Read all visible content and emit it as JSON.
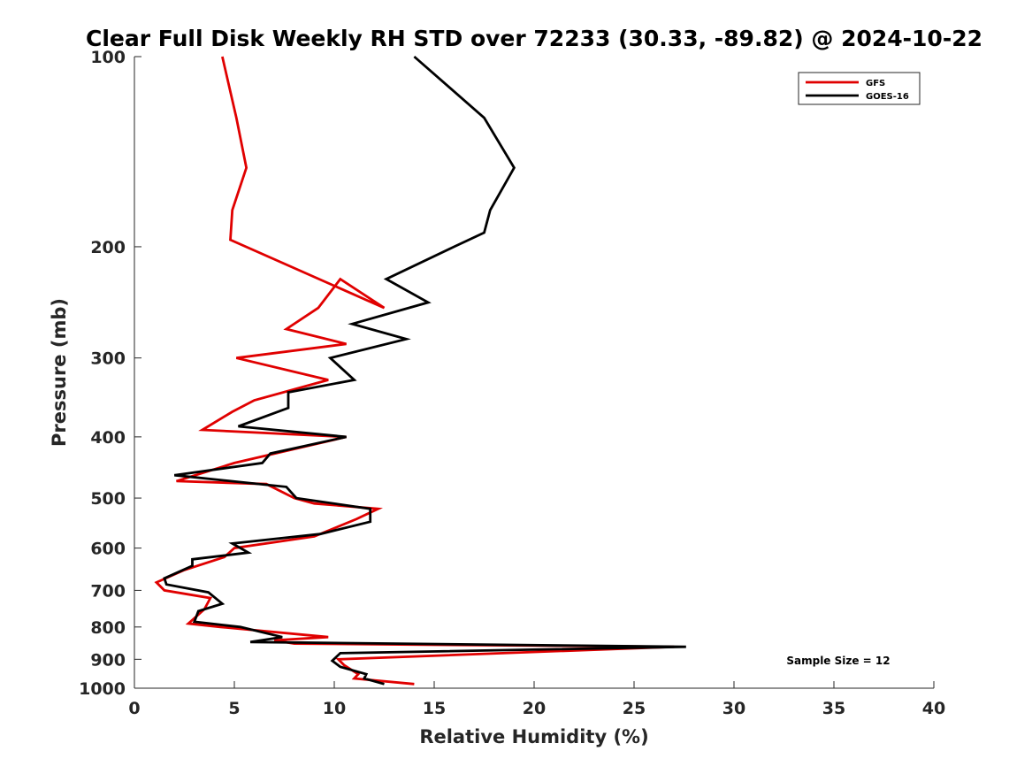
{
  "chart_data": {
    "type": "line",
    "title": "Clear Full Disk Weekly RH STD over 72233 (30.33, -89.82) @ 2024-10-22",
    "xlabel": "Relative Humidity (%)",
    "ylabel": "Pressure (mb)",
    "xlim": [
      0,
      40
    ],
    "ylim": [
      100,
      1000
    ],
    "yscale": "log",
    "y_reversed": true,
    "xticks": [
      0,
      5,
      10,
      15,
      20,
      25,
      30,
      35,
      40
    ],
    "yticks": [
      100,
      200,
      300,
      400,
      500,
      600,
      700,
      800,
      900,
      1000
    ],
    "legend_position": "top-right",
    "annotation": "Sample Size = 12",
    "series": [
      {
        "name": "GFS",
        "color": "#e00000",
        "points": [
          [
            4.4,
            100
          ],
          [
            5.1,
            125
          ],
          [
            5.6,
            150
          ],
          [
            4.9,
            175
          ],
          [
            4.8,
            195
          ],
          [
            12.5,
            250
          ],
          [
            10.3,
            225
          ],
          [
            9.2,
            250
          ],
          [
            7.6,
            270
          ],
          [
            10.6,
            285
          ],
          [
            5.1,
            300
          ],
          [
            9.7,
            325
          ],
          [
            6.0,
            350
          ],
          [
            4.9,
            365
          ],
          [
            3.4,
            390
          ],
          [
            10.6,
            400
          ],
          [
            5.0,
            440
          ],
          [
            2.1,
            470
          ],
          [
            6.6,
            475
          ],
          [
            8.0,
            500
          ],
          [
            9.0,
            510
          ],
          [
            12.2,
            520
          ],
          [
            11.1,
            540
          ],
          [
            9.0,
            575
          ],
          [
            5.0,
            600
          ],
          [
            4.5,
            620
          ],
          [
            2.5,
            650
          ],
          [
            1.1,
            680
          ],
          [
            1.5,
            700
          ],
          [
            3.8,
            720
          ],
          [
            3.5,
            750
          ],
          [
            2.7,
            790
          ],
          [
            4.3,
            800
          ],
          [
            9.7,
            830
          ],
          [
            7.0,
            840
          ],
          [
            8.0,
            850
          ],
          [
            27.0,
            860
          ],
          [
            10.2,
            900
          ],
          [
            10.5,
            920
          ],
          [
            11.2,
            950
          ],
          [
            11.0,
            965
          ],
          [
            14.0,
            985
          ]
        ]
      },
      {
        "name": "GOES-16",
        "color": "#000000",
        "points": [
          [
            14.0,
            100
          ],
          [
            17.5,
            125
          ],
          [
            19.0,
            150
          ],
          [
            17.8,
            175
          ],
          [
            17.5,
            190
          ],
          [
            16.0,
            200
          ],
          [
            12.6,
            225
          ],
          [
            14.7,
            245
          ],
          [
            10.9,
            265
          ],
          [
            13.6,
            280
          ],
          [
            9.8,
            300
          ],
          [
            11.0,
            325
          ],
          [
            7.7,
            340
          ],
          [
            7.7,
            360
          ],
          [
            5.2,
            385
          ],
          [
            10.6,
            400
          ],
          [
            6.8,
            425
          ],
          [
            6.4,
            440
          ],
          [
            2.0,
            460
          ],
          [
            7.6,
            480
          ],
          [
            8.1,
            500
          ],
          [
            11.8,
            520
          ],
          [
            11.8,
            545
          ],
          [
            9.3,
            570
          ],
          [
            4.9,
            590
          ],
          [
            5.7,
            610
          ],
          [
            2.9,
            625
          ],
          [
            2.9,
            640
          ],
          [
            1.5,
            670
          ],
          [
            1.6,
            685
          ],
          [
            3.7,
            705
          ],
          [
            4.4,
            735
          ],
          [
            3.2,
            755
          ],
          [
            3.0,
            785
          ],
          [
            5.3,
            800
          ],
          [
            7.4,
            830
          ],
          [
            5.8,
            845
          ],
          [
            27.6,
            860
          ],
          [
            10.3,
            880
          ],
          [
            9.9,
            905
          ],
          [
            10.3,
            925
          ],
          [
            11.6,
            950
          ],
          [
            11.5,
            965
          ],
          [
            12.5,
            985
          ]
        ]
      }
    ]
  }
}
